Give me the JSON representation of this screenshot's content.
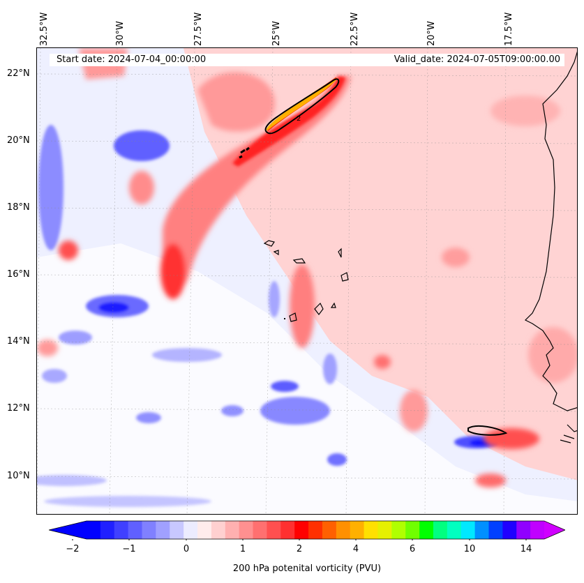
{
  "map": {
    "start_label": "Start date: 2024-07-04_00:00:00",
    "valid_label": "Valid_date: 2024-07-05T09:00:00.00",
    "lon_ticks": [
      "32.5°W",
      "30°W",
      "27.5°W",
      "25°W",
      "22.5°W",
      "20°W",
      "17.5°W"
    ],
    "lat_ticks": [
      "22°N",
      "20°N",
      "18°N",
      "16°N",
      "14°N",
      "12°N",
      "10°N"
    ],
    "contour_label": "2",
    "background_color": "#ffd3d3"
  },
  "colorbar": {
    "tick_labels": [
      "−2",
      "−1",
      "0",
      "1",
      "2",
      "4",
      "6",
      "10",
      "14"
    ],
    "label": "200 hPa potenital vorticity (PVU)",
    "colors": [
      "#0000ff",
      "#2020ff",
      "#4040ff",
      "#6060ff",
      "#8080ff",
      "#a0a0ff",
      "#c8c8ff",
      "#ececff",
      "#ffecec",
      "#ffd0d0",
      "#ffb0b0",
      "#ff9090",
      "#ff7070",
      "#ff5050",
      "#ff3030",
      "#ff0000",
      "#ff3000",
      "#ff6000",
      "#ff9000",
      "#ffb000",
      "#ffe000",
      "#e6f000",
      "#b0ff00",
      "#70ff00",
      "#00ff00",
      "#00ff80",
      "#00ffc0",
      "#00e8ff",
      "#0090ff",
      "#0040ff",
      "#2000ff",
      "#9000ff",
      "#c000ff"
    ],
    "under_color": "#0000ff",
    "over_color": "#d000ff"
  }
}
